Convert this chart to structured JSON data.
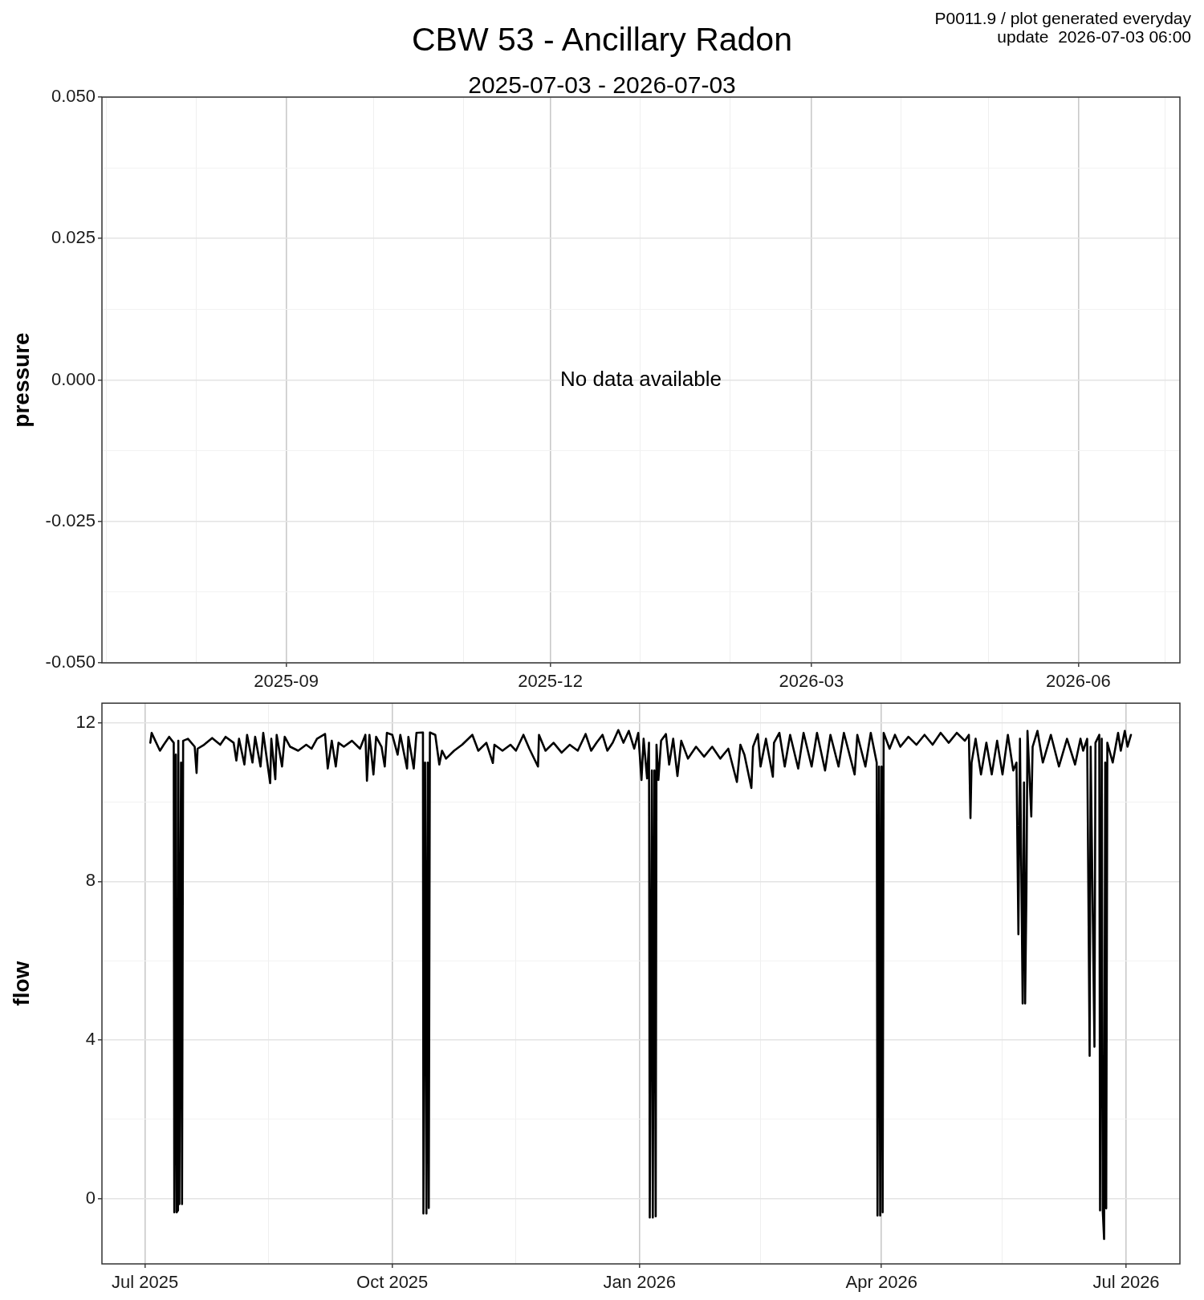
{
  "chart_data": [
    {
      "type": "line",
      "title": "CBW 53 - Ancillary Radon",
      "subtitle": "2025-07-03 - 2026-07-03",
      "ylabel": "pressure",
      "annotations": [
        "P0011.9 / plot generated everyday",
        "update  2026-07-03 06:00",
        "No data available"
      ],
      "xlim": [
        "2025-06-29T12:00",
        "2026-07-06T00:00"
      ],
      "xticks": [
        {
          "value": "2025-07",
          "label": null
        },
        {
          "value": "2025-08",
          "label": null
        },
        "2025-09",
        {
          "value": "2025-10",
          "label": null
        },
        {
          "value": "2025-11",
          "label": null
        },
        "2025-12",
        {
          "value": "2026-01",
          "label": null
        },
        {
          "value": "2026-02",
          "label": null
        },
        "2026-03",
        {
          "value": "2026-04",
          "label": null
        },
        {
          "value": "2026-05",
          "label": null
        },
        "2026-06",
        {
          "value": "2026-07",
          "label": null
        }
      ],
      "ylim": [
        -0.05,
        0.05
      ],
      "yticks": [
        {
          "value": -0.05,
          "label": "-0.050"
        },
        {
          "value": -0.0375,
          "label": null
        },
        {
          "value": -0.025,
          "label": "-0.025"
        },
        {
          "value": -0.0125,
          "label": null
        },
        {
          "value": 0,
          "label": "0.000"
        },
        {
          "value": 0.0125,
          "label": null
        },
        {
          "value": 0.025,
          "label": "0.025"
        },
        {
          "value": 0.0375,
          "label": null
        },
        {
          "value": 0.05,
          "label": "0.050"
        }
      ],
      "grid": true
    },
    {
      "type": "line",
      "ylabel": "flow",
      "color": "#000000",
      "x": [
        "2025-07-03",
        "2025-07-03T12:00",
        "2025-07-04T12:00",
        "2025-07-06T14:00",
        "2025-07-08",
        "2025-07-10",
        "2025-07-11T17:00",
        "2025-07-11T22:00",
        "2025-07-12T12:00",
        "2025-07-12T19:00",
        "2025-07-13T07:00",
        "2025-07-13T10:00",
        "2025-07-13T19:00",
        "2025-07-14T10:00",
        "2025-07-14T19:00",
        "2025-07-15T05:00",
        "2025-07-17",
        "2025-07-19T12:00",
        "2025-07-20T05:00",
        "2025-07-20T14:00",
        "2025-07-23",
        "2025-07-26",
        "2025-07-29",
        "2025-07-31",
        "2025-08-03",
        "2025-08-04",
        "2025-08-05",
        "2025-08-07",
        "2025-08-08",
        "2025-08-10",
        "2025-08-11",
        "2025-08-13",
        "2025-08-14",
        "2025-08-16T14:00",
        "2025-08-17",
        "2025-08-18T12:00",
        "2025-08-19",
        "2025-08-21",
        "2025-08-22",
        "2025-08-24",
        "2025-08-27",
        "2025-08-30",
        "2025-09-01",
        "2025-09-03",
        "2025-09-06",
        "2025-09-07",
        "2025-09-08T12:00",
        "2025-09-10",
        "2025-09-11",
        "2025-09-13",
        "2025-09-16",
        "2025-09-19",
        "2025-09-21",
        "2025-09-21T14:00",
        "2025-09-22T12:00",
        "2025-09-24",
        "2025-09-25",
        "2025-09-27",
        "2025-09-28T05:00",
        "2025-09-29",
        "2025-10-01",
        "2025-10-03",
        "2025-10-04",
        "2025-10-06T12:00",
        "2025-10-07",
        "2025-10-09",
        "2025-10-10",
        "2025-10-12T10:00",
        "2025-10-12T14:00",
        "2025-10-13T05:00",
        "2025-10-13T17:00",
        "2025-10-14T05:00",
        "2025-10-14T14:00",
        "2025-10-15",
        "2025-10-17",
        "2025-10-18T12:00",
        "2025-10-19T12:00",
        "2025-10-21",
        "2025-10-24",
        "2025-10-27",
        "2025-10-30T19:00",
        "2025-11-02",
        "2025-11-05",
        "2025-11-07T10:00",
        "2025-11-08",
        "2025-11-11",
        "2025-11-14",
        "2025-11-16",
        "2025-11-18T19:00",
        "2025-11-21",
        "2025-11-24T05:00",
        "2025-11-24T14:00",
        "2025-11-27",
        "2025-11-30",
        "2025-12-03",
        "2025-12-06",
        "2025-12-09",
        "2025-12-11T22:00",
        "2025-12-14",
        "2025-12-16",
        "2025-12-18T05:00",
        "2025-12-20",
        "2025-12-22",
        "2025-12-24T02:00",
        "2025-12-26",
        "2025-12-28",
        "2025-12-30",
        "2025-12-31T12:00",
        "2026-01-01T17:00",
        "2026-01-02T12:00",
        "2026-01-03T19:00",
        "2026-01-04T12:00",
        "2026-01-04T19:00",
        "2026-01-05T14:00",
        "2026-01-05T22:00",
        "2026-01-06T12:00",
        "2026-01-07",
        "2026-01-07T07:00",
        "2026-01-08",
        "2026-01-09",
        "2026-01-10T19:00",
        "2026-01-12",
        "2026-01-13T12:00",
        "2026-01-15T02:00",
        "2026-01-16T12:00",
        "2026-01-19",
        "2026-01-22",
        "2026-01-25",
        "2026-01-28",
        "2026-01-31",
        "2026-02-03",
        "2026-02-06T05:00",
        "2026-02-07T12:00",
        "2026-02-09",
        "2026-02-11T14:00",
        "2026-02-12T05:00",
        "2026-02-14",
        "2026-02-15",
        "2026-02-17",
        "2026-02-19T14:00",
        "2026-02-20",
        "2026-02-22",
        "2026-02-24",
        "2026-02-26",
        "2026-03-01",
        "2026-03-03",
        "2026-03-06",
        "2026-03-08",
        "2026-03-11",
        "2026-03-13",
        "2026-03-16",
        "2026-03-18",
        "2026-03-22",
        "2026-03-23",
        "2026-03-26",
        "2026-03-28",
        "2026-03-30T05:00",
        "2026-03-30T12:00",
        "2026-03-31T02:00",
        "2026-03-31T12:00",
        "2026-04-01",
        "2026-04-01T10:00",
        "2026-04-01T19:00",
        "2026-04-04",
        "2026-04-06",
        "2026-04-08",
        "2026-04-11",
        "2026-04-14",
        "2026-04-17",
        "2026-04-20",
        "2026-04-23",
        "2026-04-26",
        "2026-04-29",
        "2026-05-02",
        "2026-05-03T12:00",
        "2026-05-04T02:00",
        "2026-05-04T12:00",
        "2026-05-06",
        "2026-05-08",
        "2026-05-10",
        "2026-05-12",
        "2026-05-14",
        "2026-05-16",
        "2026-05-18",
        "2026-05-20",
        "2026-05-21T05:00",
        "2026-05-21T22:00",
        "2026-05-22T12:00",
        "2026-05-23T12:00",
        "2026-05-24",
        "2026-05-24T10:00",
        "2026-05-24T22:00",
        "2026-05-25T07:00",
        "2026-05-26T17:00",
        "2026-05-27T05:00",
        "2026-05-29",
        "2026-05-31",
        "2026-06-03",
        "2026-06-06",
        "2026-06-09",
        "2026-06-12",
        "2026-06-14",
        "2026-06-15",
        "2026-06-16T12:00",
        "2026-06-17T10:00",
        "2026-06-17T19:00",
        "2026-06-19T05:00",
        "2026-06-19T14:00",
        "2026-06-21",
        "2026-06-21T07:00",
        "2026-06-21T22:00",
        "2026-06-22T07:00",
        "2026-06-22T19:00",
        "2026-06-23T05:00",
        "2026-06-23T14:00",
        "2026-06-24",
        "2026-06-26",
        "2026-06-28",
        "2026-06-29",
        "2026-06-30T12:00",
        "2026-07-01T12:00",
        "2026-07-02T19:00"
      ],
      "values": [
        11.5,
        11.75,
        11.6,
        11.3,
        11.45,
        11.65,
        11.5,
        -0.35,
        11.2,
        -0.35,
        -0.3,
        11.55,
        -0.14,
        11.0,
        -0.14,
        11.55,
        11.6,
        11.4,
        10.74,
        11.35,
        11.45,
        11.62,
        11.45,
        11.65,
        11.5,
        11.05,
        11.6,
        10.95,
        11.7,
        11.0,
        11.65,
        10.9,
        11.75,
        10.48,
        11.6,
        10.58,
        11.7,
        10.9,
        11.65,
        11.4,
        11.3,
        11.45,
        11.35,
        11.6,
        11.72,
        10.85,
        11.55,
        10.9,
        11.5,
        11.4,
        11.55,
        11.35,
        11.7,
        10.54,
        11.7,
        10.7,
        11.65,
        11.4,
        10.9,
        11.75,
        11.7,
        11.2,
        11.7,
        10.85,
        11.65,
        10.85,
        11.75,
        11.76,
        -0.38,
        11.0,
        -0.38,
        11.0,
        -0.24,
        11.76,
        11.7,
        10.95,
        11.3,
        11.1,
        11.3,
        11.45,
        11.7,
        11.3,
        11.5,
        10.99,
        11.45,
        11.3,
        11.45,
        11.3,
        11.7,
        11.35,
        10.9,
        11.7,
        11.3,
        11.5,
        11.25,
        11.45,
        11.3,
        11.72,
        11.3,
        11.5,
        11.7,
        11.3,
        11.5,
        11.82,
        11.5,
        11.8,
        11.35,
        11.75,
        10.56,
        11.6,
        10.6,
        11.5,
        -0.48,
        10.8,
        -0.48,
        10.8,
        -0.45,
        11.45,
        10.56,
        11.55,
        11.72,
        10.95,
        11.6,
        10.66,
        11.55,
        11.1,
        11.4,
        11.15,
        11.4,
        11.1,
        11.35,
        10.51,
        11.45,
        11.2,
        10.36,
        11.4,
        11.72,
        10.9,
        11.6,
        10.64,
        11.5,
        11.75,
        10.9,
        11.7,
        10.85,
        11.75,
        10.9,
        11.75,
        10.8,
        11.7,
        10.9,
        11.75,
        10.7,
        11.7,
        10.9,
        11.75,
        11.0,
        -0.43,
        10.9,
        -0.43,
        10.9,
        -0.35,
        11.75,
        11.35,
        11.7,
        11.4,
        11.65,
        11.45,
        11.7,
        11.45,
        11.75,
        11.5,
        11.75,
        11.55,
        11.7,
        9.6,
        11.0,
        11.6,
        10.7,
        11.5,
        10.7,
        11.55,
        10.7,
        11.7,
        10.8,
        11.0,
        6.67,
        11.6,
        4.92,
        10.5,
        4.92,
        7.85,
        11.8,
        9.64,
        11.4,
        11.8,
        11.0,
        11.7,
        10.9,
        11.6,
        10.95,
        11.6,
        11.3,
        11.6,
        3.6,
        11.4,
        3.83,
        11.5,
        11.7,
        -0.3,
        11.6,
        -0.3,
        -1.02,
        11.0,
        -0.25,
        11.5,
        11.0,
        11.75,
        11.3,
        11.8,
        11.4,
        11.7
      ],
      "xlim": [
        "2025-06-15",
        "2026-07-21"
      ],
      "xticks": [
        {
          "value": "2025-07",
          "label": "Jul 2025"
        },
        {
          "value": "2025-08-16",
          "label": null
        },
        {
          "value": "2025-10",
          "label": "Oct 2025"
        },
        {
          "value": "2025-11-16",
          "label": null
        },
        {
          "value": "2026-01",
          "label": "Jan 2026"
        },
        {
          "value": "2026-02-15",
          "label": null
        },
        {
          "value": "2026-04",
          "label": "Apr 2026"
        },
        {
          "value": "2026-05-16",
          "label": null
        },
        {
          "value": "2026-07",
          "label": "Jul 2026"
        }
      ],
      "ylim": [
        -1.65,
        12.5
      ],
      "yticks": [
        0,
        {
          "value": 2,
          "label": null
        },
        4,
        {
          "value": 6,
          "label": null
        },
        8,
        {
          "value": 10,
          "label": null
        },
        12
      ],
      "grid": true
    }
  ]
}
